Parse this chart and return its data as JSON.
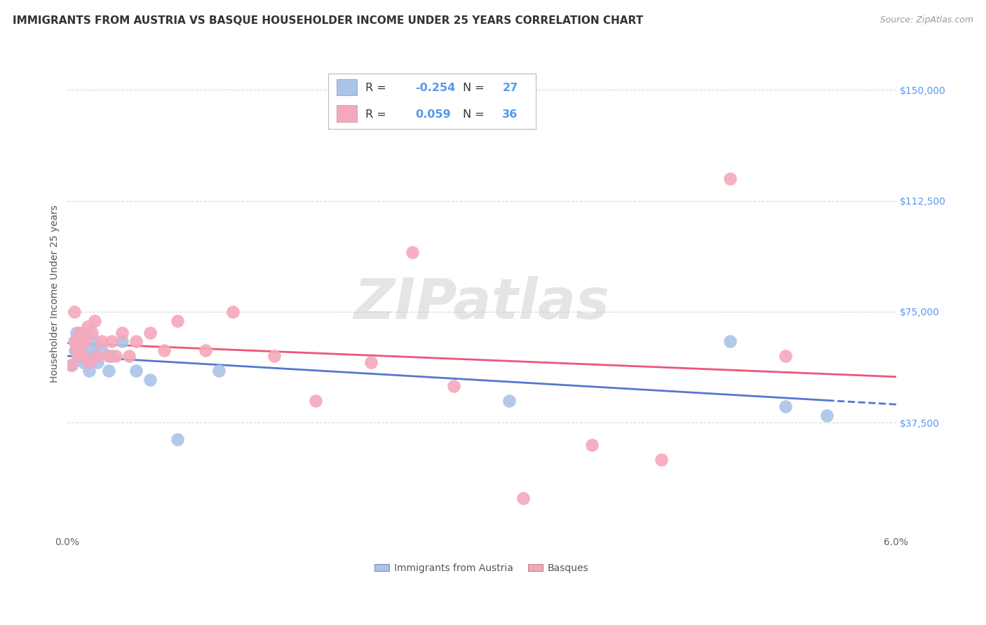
{
  "title": "IMMIGRANTS FROM AUSTRIA VS BASQUE HOUSEHOLDER INCOME UNDER 25 YEARS CORRELATION CHART",
  "source": "Source: ZipAtlas.com",
  "ylabel": "Householder Income Under 25 years",
  "xlim": [
    0.0,
    0.06
  ],
  "ylim": [
    0,
    162000
  ],
  "yticks": [
    0,
    37500,
    75000,
    112500,
    150000
  ],
  "ytick_labels": [
    "",
    "$37,500",
    "$75,000",
    "$112,500",
    "$150,000"
  ],
  "xtick_positions": [
    0.0,
    0.01,
    0.02,
    0.03,
    0.04,
    0.05,
    0.06
  ],
  "xtick_labels": [
    "0.0%",
    "",
    "",
    "",
    "",
    "",
    "6.0%"
  ],
  "background_color": "#ffffff",
  "grid_color": "#d8d8d8",
  "watermark_text": "ZIPatlas",
  "austria_color": "#aac4e8",
  "basque_color": "#f5a8bc",
  "austria_line_color": "#5577cc",
  "basque_line_color": "#ee5577",
  "austria_R": -0.254,
  "austria_N": 27,
  "basque_R": 0.059,
  "basque_N": 36,
  "legend_label_austria": "Immigrants from Austria",
  "legend_label_basque": "Basques",
  "right_tick_color": "#5599ee",
  "austria_x": [
    0.0003,
    0.0005,
    0.0006,
    0.0007,
    0.0008,
    0.001,
    0.001,
    0.0012,
    0.0013,
    0.0015,
    0.0016,
    0.0018,
    0.002,
    0.002,
    0.0022,
    0.0025,
    0.003,
    0.0032,
    0.004,
    0.005,
    0.006,
    0.008,
    0.011,
    0.032,
    0.048,
    0.052,
    0.055
  ],
  "austria_y": [
    57000,
    65000,
    62000,
    68000,
    60000,
    65000,
    62000,
    58000,
    68000,
    60000,
    55000,
    62000,
    60000,
    65000,
    58000,
    62000,
    55000,
    60000,
    65000,
    55000,
    52000,
    32000,
    55000,
    45000,
    65000,
    43000,
    40000
  ],
  "basque_x": [
    0.0003,
    0.0005,
    0.0006,
    0.0007,
    0.0008,
    0.0009,
    0.001,
    0.0012,
    0.0013,
    0.0015,
    0.0016,
    0.0018,
    0.002,
    0.0022,
    0.0025,
    0.003,
    0.0032,
    0.0035,
    0.004,
    0.0045,
    0.005,
    0.006,
    0.007,
    0.008,
    0.01,
    0.012,
    0.015,
    0.018,
    0.022,
    0.025,
    0.028,
    0.033,
    0.038,
    0.043,
    0.048,
    0.052
  ],
  "basque_y": [
    57000,
    75000,
    65000,
    62000,
    60000,
    68000,
    65000,
    60000,
    65000,
    70000,
    58000,
    68000,
    72000,
    60000,
    65000,
    60000,
    65000,
    60000,
    68000,
    60000,
    65000,
    68000,
    62000,
    72000,
    62000,
    75000,
    60000,
    45000,
    58000,
    95000,
    50000,
    12000,
    30000,
    25000,
    120000,
    60000
  ],
  "title_fontsize": 11,
  "axis_label_fontsize": 10,
  "tick_fontsize": 10,
  "legend_fontsize": 11
}
